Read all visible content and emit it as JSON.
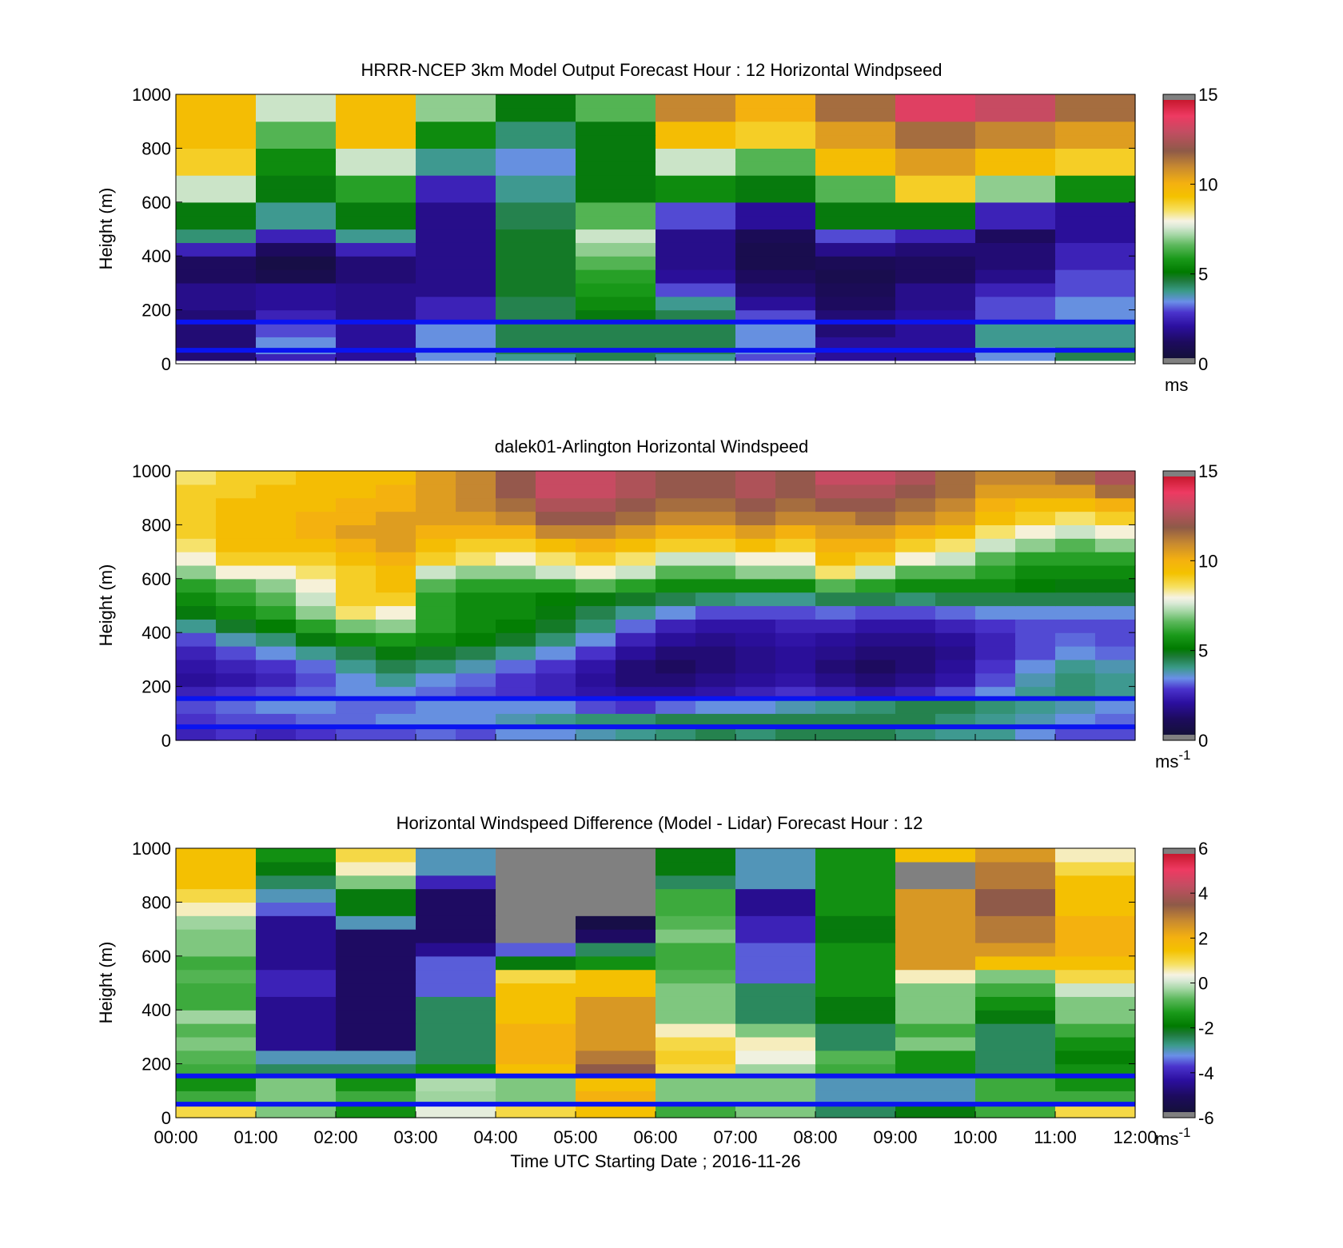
{
  "figure": {
    "xlabel": "Time UTC  Starting Date ; 2016-11-26",
    "x_tick_labels": [
      "00:00",
      "01:00",
      "02:00",
      "03:00",
      "04:00",
      "05:00",
      "06:00",
      "07:00",
      "08:00",
      "09:00",
      "10:00",
      "11:00",
      "12:00"
    ]
  },
  "chart_data": [
    {
      "type": "heatmap",
      "title": "HRRR-NCEP 3km Model Output   Forecast Hour : 12 Horizontal Windpseed",
      "ylabel": "Height (m)",
      "xlim": [
        "00:00",
        "12:00"
      ],
      "ylim": [
        0,
        1000
      ],
      "y_ticks": [
        0,
        200,
        400,
        600,
        800,
        1000
      ],
      "colorbar": {
        "min": 0,
        "max": 15,
        "ticks": [
          0,
          5,
          10,
          15
        ],
        "unit": "ms",
        "unit_sup": ""
      },
      "x_hours": [
        0,
        1,
        2,
        3,
        4,
        5,
        6,
        7,
        8,
        9,
        10,
        11
      ],
      "height_levels_m": [
        25,
        50,
        75,
        125,
        175,
        225,
        275,
        325,
        375,
        425,
        475,
        525,
        575,
        625,
        675,
        725,
        775,
        825,
        875,
        925,
        975
      ],
      "speed_ms": [
        [
          1.5,
          2.5,
          2.0,
          3.5,
          4.0,
          4.5,
          4.0,
          3.0,
          2.0,
          2.0,
          3.5,
          4.5
        ],
        [
          1.5,
          3.5,
          2.0,
          3.5,
          4.5,
          4.5,
          4.5,
          3.5,
          2.0,
          2.0,
          3.5,
          4.5
        ],
        [
          1.5,
          3.5,
          2.0,
          3.5,
          4.5,
          4.5,
          4.5,
          3.5,
          2.0,
          2.0,
          4.0,
          4.0
        ],
        [
          1.5,
          3.0,
          2.0,
          3.5,
          4.5,
          4.5,
          4.5,
          3.5,
          1.5,
          2.0,
          4.0,
          4.0
        ],
        [
          1.5,
          2.5,
          1.8,
          2.5,
          4.5,
          5.0,
          4.5,
          3.0,
          1.5,
          2.0,
          3.0,
          3.5
        ],
        [
          1.8,
          2.0,
          1.8,
          2.5,
          4.5,
          5.5,
          4.0,
          2.0,
          1.2,
          1.8,
          3.0,
          3.5
        ],
        [
          1.8,
          2.0,
          1.8,
          1.8,
          4.8,
          5.8,
          3.0,
          1.5,
          1.0,
          1.8,
          2.5,
          3.0
        ],
        [
          1.2,
          0.8,
          1.5,
          1.8,
          4.8,
          6.0,
          2.0,
          1.2,
          0.8,
          1.2,
          1.8,
          3.0
        ],
        [
          1.2,
          0.6,
          1.5,
          1.8,
          4.8,
          6.5,
          1.8,
          0.8,
          1.0,
          1.2,
          1.5,
          2.5
        ],
        [
          2.5,
          1.2,
          2.5,
          1.8,
          4.8,
          7.0,
          1.8,
          0.8,
          1.8,
          1.5,
          1.5,
          2.5
        ],
        [
          4.2,
          2.5,
          4.0,
          1.8,
          4.8,
          7.5,
          1.8,
          1.0,
          3.0,
          2.5,
          1.2,
          2.0
        ],
        [
          5.0,
          4.0,
          5.0,
          1.8,
          4.5,
          6.5,
          3.0,
          2.0,
          5.0,
          5.0,
          2.5,
          2.0
        ],
        [
          5.0,
          4.0,
          5.0,
          1.8,
          4.5,
          6.5,
          3.0,
          2.0,
          5.0,
          5.0,
          2.5,
          2.0
        ],
        [
          7.5,
          5.0,
          6.0,
          2.5,
          4.0,
          5.0,
          5.5,
          5.0,
          6.5,
          9.0,
          7.0,
          5.5
        ],
        [
          7.5,
          5.0,
          6.0,
          2.5,
          4.0,
          5.0,
          5.5,
          5.0,
          6.5,
          9.0,
          7.0,
          5.5
        ],
        [
          9.0,
          5.5,
          7.5,
          4.0,
          3.5,
          5.0,
          7.5,
          6.5,
          9.5,
          10.5,
          9.5,
          9.0
        ],
        [
          9.0,
          5.5,
          7.5,
          4.0,
          3.5,
          5.0,
          7.5,
          6.5,
          9.5,
          10.5,
          9.5,
          9.0
        ],
        [
          9.5,
          6.5,
          9.5,
          5.5,
          4.2,
          5.0,
          9.5,
          9.0,
          10.5,
          11.5,
          11.0,
          10.5
        ],
        [
          9.5,
          6.5,
          9.5,
          5.5,
          4.2,
          5.0,
          9.5,
          9.0,
          10.5,
          11.5,
          11.0,
          10.5
        ],
        [
          9.5,
          7.5,
          9.5,
          7.0,
          5.0,
          6.5,
          11.0,
          10.0,
          11.5,
          13.5,
          13.0,
          11.5
        ],
        [
          9.5,
          7.5,
          9.5,
          7.0,
          5.0,
          6.5,
          11.0,
          10.0,
          11.5,
          13.5,
          13.0,
          11.5
        ]
      ],
      "reference_lines_m": [
        50,
        155
      ]
    },
    {
      "type": "heatmap",
      "title": "dalek01-Arlington  Horizontal Windspeed",
      "ylabel": "Height (m)",
      "xlim": [
        "00:00",
        "12:00"
      ],
      "ylim": [
        0,
        1000
      ],
      "y_ticks": [
        0,
        200,
        400,
        600,
        800,
        1000
      ],
      "colorbar": {
        "min": 0,
        "max": 15,
        "ticks": [
          0,
          5,
          10,
          15
        ],
        "unit": "ms",
        "unit_sup": "-1"
      },
      "x_hours": [
        0.0,
        0.5,
        1.0,
        1.5,
        2.0,
        2.5,
        3.0,
        3.5,
        4.0,
        4.5,
        5.0,
        5.5,
        6.0,
        6.5,
        7.0,
        7.5,
        8.0,
        8.5,
        9.0,
        9.5,
        10.0,
        10.5,
        11.0,
        11.5
      ],
      "height_levels_m": [
        25,
        75,
        125,
        175,
        225,
        275,
        325,
        375,
        425,
        475,
        525,
        575,
        625,
        675,
        725,
        775,
        825,
        875,
        925,
        975
      ],
      "speed_ms": [
        [
          2.5,
          2.8,
          2.5,
          2.8,
          3.0,
          3.0,
          3.2,
          3.0,
          3.5,
          3.5,
          3.8,
          4.0,
          4.2,
          4.5,
          4.2,
          4.5,
          4.5,
          4.5,
          4.2,
          4.0,
          4.0,
          3.5,
          3.0,
          3.0
        ],
        [
          2.8,
          3.0,
          3.0,
          3.2,
          3.2,
          3.5,
          3.5,
          3.5,
          3.8,
          4.0,
          4.2,
          4.2,
          4.5,
          4.5,
          4.5,
          4.5,
          4.5,
          4.5,
          4.5,
          4.2,
          4.0,
          3.8,
          3.5,
          3.2
        ],
        [
          3.0,
          3.2,
          3.5,
          3.5,
          3.2,
          3.2,
          3.5,
          3.5,
          3.5,
          3.5,
          3.0,
          2.8,
          3.2,
          3.5,
          3.5,
          3.8,
          4.0,
          4.2,
          4.5,
          4.5,
          4.2,
          4.0,
          3.8,
          3.5
        ],
        [
          2.5,
          2.8,
          3.0,
          3.2,
          3.5,
          3.5,
          3.2,
          3.0,
          2.8,
          2.5,
          2.2,
          2.0,
          2.0,
          2.2,
          2.5,
          2.8,
          2.5,
          2.2,
          2.5,
          3.0,
          3.5,
          4.0,
          4.2,
          4.0
        ],
        [
          2.0,
          2.2,
          2.5,
          3.0,
          3.5,
          4.0,
          3.5,
          3.2,
          2.8,
          2.5,
          2.0,
          1.5,
          1.5,
          1.8,
          2.0,
          2.2,
          1.8,
          1.5,
          1.8,
          2.2,
          3.0,
          3.8,
          4.2,
          4.0
        ],
        [
          2.2,
          2.5,
          2.8,
          3.2,
          4.0,
          4.5,
          4.2,
          3.8,
          3.2,
          2.8,
          2.2,
          1.5,
          1.2,
          1.5,
          1.8,
          2.0,
          1.5,
          1.2,
          1.5,
          2.0,
          2.8,
          3.5,
          4.0,
          3.8
        ],
        [
          2.5,
          3.0,
          3.5,
          4.0,
          4.5,
          5.0,
          4.8,
          4.5,
          4.0,
          3.5,
          2.8,
          2.0,
          1.5,
          1.5,
          1.8,
          2.0,
          1.8,
          1.5,
          1.5,
          1.8,
          2.5,
          3.0,
          3.5,
          3.2
        ],
        [
          3.0,
          3.8,
          4.2,
          5.0,
          5.5,
          5.8,
          5.5,
          5.2,
          4.8,
          4.2,
          3.5,
          2.5,
          2.0,
          1.8,
          2.0,
          2.2,
          2.0,
          1.8,
          1.8,
          2.0,
          2.5,
          3.0,
          3.2,
          3.0
        ],
        [
          4.0,
          4.8,
          5.2,
          6.0,
          6.8,
          7.0,
          6.0,
          5.5,
          5.2,
          4.8,
          4.2,
          3.2,
          2.5,
          2.2,
          2.2,
          2.5,
          2.5,
          2.2,
          2.2,
          2.5,
          2.8,
          3.0,
          3.0,
          3.0
        ],
        [
          5.0,
          5.5,
          6.0,
          7.0,
          8.5,
          8.0,
          6.0,
          5.5,
          5.5,
          5.0,
          4.5,
          4.0,
          3.5,
          3.0,
          3.0,
          3.0,
          3.2,
          3.0,
          3.0,
          3.2,
          3.5,
          3.5,
          3.5,
          3.5
        ],
        [
          5.5,
          6.0,
          6.5,
          7.5,
          9.0,
          9.0,
          6.0,
          5.5,
          5.5,
          5.2,
          5.0,
          4.8,
          4.5,
          4.2,
          4.0,
          4.0,
          4.5,
          4.5,
          4.2,
          4.5,
          4.5,
          4.5,
          4.5,
          4.5
        ],
        [
          6.0,
          6.5,
          7.0,
          8.0,
          9.0,
          9.5,
          6.5,
          6.0,
          6.0,
          6.0,
          6.5,
          6.0,
          5.5,
          5.5,
          5.5,
          5.5,
          6.5,
          6.0,
          5.5,
          5.5,
          5.5,
          5.2,
          5.0,
          5.0
        ],
        [
          7.0,
          8.0,
          8.0,
          8.5,
          9.0,
          9.5,
          7.5,
          7.0,
          7.0,
          7.5,
          8.0,
          7.5,
          6.5,
          6.5,
          7.0,
          7.0,
          8.5,
          7.5,
          6.5,
          6.5,
          6.0,
          5.5,
          5.5,
          5.5
        ],
        [
          8.0,
          9.0,
          9.0,
          9.0,
          9.5,
          10.0,
          9.0,
          8.5,
          8.0,
          8.5,
          9.0,
          8.5,
          7.5,
          7.5,
          8.0,
          8.0,
          9.5,
          9.0,
          8.0,
          7.5,
          6.5,
          6.0,
          6.0,
          6.0
        ],
        [
          8.5,
          9.5,
          9.5,
          9.5,
          10.0,
          10.5,
          9.5,
          9.0,
          9.0,
          9.5,
          10.0,
          9.5,
          9.0,
          9.0,
          9.5,
          9.0,
          10.0,
          10.0,
          9.0,
          8.5,
          7.5,
          7.0,
          6.5,
          7.0
        ],
        [
          9.0,
          9.5,
          9.5,
          10.0,
          10.5,
          10.5,
          10.0,
          10.0,
          10.0,
          11.0,
          11.0,
          10.5,
          10.0,
          10.0,
          10.5,
          10.0,
          10.5,
          10.5,
          10.0,
          9.5,
          8.5,
          8.0,
          7.5,
          8.0
        ],
        [
          9.0,
          9.5,
          9.5,
          10.0,
          10.0,
          10.5,
          10.5,
          10.5,
          11.0,
          12.0,
          12.0,
          11.5,
          11.0,
          11.0,
          11.5,
          11.0,
          11.0,
          11.5,
          11.0,
          10.5,
          9.5,
          9.0,
          8.5,
          9.0
        ],
        [
          9.0,
          9.5,
          9.5,
          9.5,
          10.0,
          10.0,
          10.5,
          11.0,
          11.5,
          12.5,
          12.5,
          12.0,
          11.5,
          11.5,
          12.0,
          11.5,
          12.0,
          12.0,
          11.5,
          11.0,
          10.0,
          9.5,
          9.5,
          10.0
        ],
        [
          9.0,
          9.0,
          9.5,
          9.5,
          9.5,
          10.0,
          10.5,
          11.0,
          12.0,
          13.0,
          13.0,
          12.5,
          12.0,
          12.0,
          12.5,
          12.0,
          12.5,
          12.5,
          12.0,
          11.5,
          10.5,
          10.5,
          10.5,
          11.5
        ],
        [
          8.5,
          9.0,
          9.0,
          9.5,
          9.5,
          9.5,
          10.5,
          11.0,
          12.0,
          13.0,
          13.0,
          12.5,
          12.0,
          12.0,
          12.5,
          12.0,
          13.0,
          13.0,
          12.5,
          11.5,
          11.0,
          11.0,
          11.5,
          12.5
        ]
      ],
      "reference_lines_m": [
        50,
        155
      ]
    },
    {
      "type": "heatmap",
      "title": "Horizontal Windspeed Difference (Model - Lidar) Forecast Hour : 12",
      "ylabel": "Height (m)",
      "xlim": [
        "00:00",
        "12:00"
      ],
      "ylim": [
        0,
        1000
      ],
      "y_ticks": [
        0,
        200,
        400,
        600,
        800,
        1000
      ],
      "colorbar": {
        "min": -6,
        "max": 6,
        "ticks": [
          -6,
          -4,
          -2,
          0,
          2,
          4,
          6
        ],
        "unit": "ms",
        "unit_sup": "-1"
      },
      "x_hours": [
        0,
        1,
        2,
        3,
        4,
        5,
        6,
        7,
        8,
        9,
        10,
        11
      ],
      "height_levels_m": [
        25,
        75,
        125,
        175,
        225,
        275,
        325,
        375,
        425,
        475,
        525,
        575,
        625,
        675,
        725,
        775,
        825,
        875,
        925,
        975
      ],
      "difference_ms": [
        [
          1.0,
          -0.5,
          -1.5,
          0.2,
          1.0,
          1.5,
          -1.0,
          -0.5,
          -2.5,
          -2.0,
          -1.0,
          1.0
        ],
        [
          -1.0,
          -0.5,
          -1.0,
          -0.3,
          -0.5,
          2.0,
          -0.5,
          -0.5,
          -3.0,
          -3.0,
          -1.0,
          -1.0
        ],
        [
          -1.5,
          -0.5,
          -1.5,
          -0.2,
          -0.5,
          1.5,
          -0.5,
          -0.5,
          -3.0,
          -3.0,
          -1.0,
          -1.5
        ],
        [
          -1.0,
          -2.5,
          -2.5,
          -1.5,
          1.5,
          3.5,
          1.0,
          -0.3,
          -1.0,
          -1.5,
          -2.5,
          -1.5
        ],
        [
          -0.8,
          -3.0,
          -3.0,
          -2.5,
          2.0,
          3.0,
          1.2,
          0.3,
          -0.8,
          -1.5,
          -2.5,
          -1.8
        ],
        [
          -0.5,
          -4.5,
          -5.0,
          -2.5,
          2.0,
          2.5,
          1.0,
          0.5,
          -2.5,
          -0.5,
          -2.5,
          -1.5
        ],
        [
          -0.8,
          -4.5,
          -5.0,
          -2.5,
          2.0,
          2.5,
          0.5,
          -0.5,
          -2.5,
          -1.0,
          -2.5,
          -1.0
        ],
        [
          -0.3,
          -4.5,
          -5.0,
          -2.5,
          1.5,
          2.5,
          -0.5,
          -2.5,
          -2.0,
          -0.5,
          -2.0,
          -0.5
        ],
        [
          -1.0,
          -4.5,
          -5.0,
          -2.5,
          1.5,
          2.5,
          -0.5,
          -2.5,
          -2.0,
          -0.5,
          -1.5,
          -0.5
        ],
        [
          -1.0,
          -4.0,
          -5.0,
          -3.5,
          1.5,
          1.5,
          -0.5,
          -2.5,
          -1.5,
          -0.5,
          -1.0,
          0.0
        ],
        [
          -0.8,
          -4.0,
          -5.0,
          -3.5,
          1.0,
          1.5,
          -0.8,
          -3.5,
          -1.5,
          0.5,
          -0.5,
          1.0
        ],
        [
          -1.0,
          -4.5,
          -5.0,
          -3.5,
          -2.0,
          -1.5,
          -1.0,
          -3.5,
          -1.5,
          2.5,
          1.5,
          1.5
        ],
        [
          -0.5,
          -4.5,
          -5.0,
          -4.5,
          -3.5,
          -2.5,
          -1.0,
          -3.5,
          -1.5,
          2.5,
          2.5,
          2.0
        ],
        [
          -0.5,
          -4.5,
          -5.0,
          -5.0,
          null,
          -5.0,
          -0.5,
          -4.0,
          -2.0,
          2.5,
          3.0,
          2.0
        ],
        [
          -0.3,
          -4.5,
          -3.0,
          -5.0,
          null,
          -5.5,
          -0.8,
          -4.0,
          -2.0,
          2.5,
          3.0,
          2.0
        ],
        [
          0.5,
          -3.5,
          -2.0,
          -5.0,
          null,
          null,
          -1.0,
          -4.5,
          -1.5,
          2.5,
          3.5,
          1.5
        ],
        [
          1.0,
          -3.0,
          -2.0,
          -5.0,
          null,
          null,
          -1.0,
          -4.5,
          -1.5,
          2.5,
          3.5,
          1.5
        ],
        [
          1.5,
          -2.5,
          -0.5,
          -4.0,
          null,
          null,
          -2.5,
          -3.0,
          -1.5,
          null,
          3.0,
          1.5
        ],
        [
          1.5,
          -2.0,
          0.5,
          -3.0,
          null,
          null,
          -2.0,
          -3.0,
          -1.5,
          null,
          3.0,
          1.0
        ],
        [
          1.5,
          -1.5,
          1.0,
          -3.0,
          -6.0,
          -6.0,
          -2.0,
          -3.0,
          -1.5,
          1.5,
          2.5,
          0.5
        ]
      ],
      "reference_lines_m": [
        50,
        155
      ]
    }
  ]
}
